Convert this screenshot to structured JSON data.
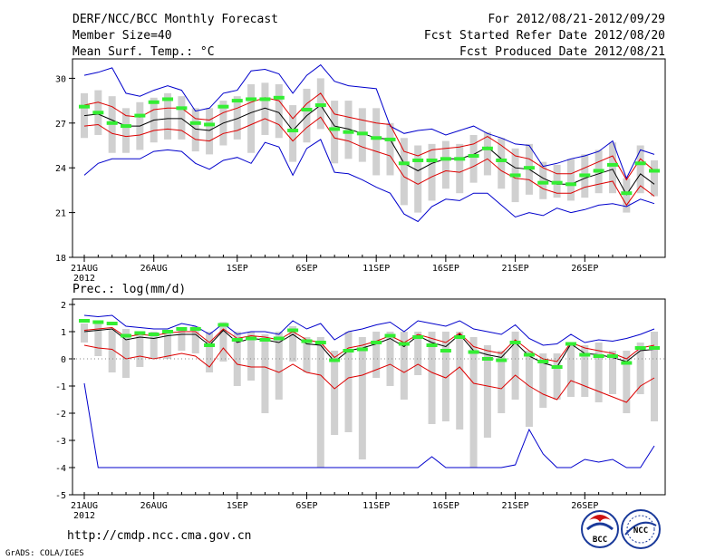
{
  "header": {
    "title": "DERF/NCC/BCC Monthly Forecast",
    "member_size": "Member Size=40",
    "variable": "Mean Surf. Temp.: °C",
    "period": "For 2012/08/21-2012/09/29",
    "start_date": "Fcst Started Refer Date 2012/08/20",
    "produced_date": "Fcst Produced Date 2012/08/21"
  },
  "footer": {
    "url": "http://cmdp.ncc.cma.gov.cn",
    "grads": "GrADS: COLA/IGES",
    "logo1_text": "BCC",
    "logo2_text": "NCC"
  },
  "colors": {
    "box": "#d0d0d0",
    "ensemble_mean": "#000000",
    "spread": "#dd0000",
    "extremes": "#0000cc",
    "observed": "#33ee33",
    "grid": "#000000"
  },
  "chart_data": [
    {
      "type": "box",
      "title": "Mean Surf. Temp.: °C",
      "xlabel": "",
      "ylabel": "°C",
      "ylim": [
        18,
        31.3
      ],
      "yticks": [
        18,
        21,
        24,
        27,
        30
      ],
      "x_start_day": 0,
      "x_end_day": 40,
      "xticks": [
        {
          "day": 0,
          "label": "21AUG",
          "year": "2012"
        },
        {
          "day": 5,
          "label": "26AUG"
        },
        {
          "day": 11,
          "label": "1SEP"
        },
        {
          "day": 16,
          "label": "6SEP"
        },
        {
          "day": 21,
          "label": "11SEP"
        },
        {
          "day": 26,
          "label": "16SEP"
        },
        {
          "day": 31,
          "label": "21SEP"
        },
        {
          "day": 36,
          "label": "26SEP"
        }
      ],
      "mean": [
        27.5,
        27.6,
        27.2,
        26.8,
        26.8,
        27.2,
        27.3,
        27.3,
        26.6,
        26.5,
        27.0,
        27.3,
        27.7,
        28.0,
        27.7,
        26.5,
        27.5,
        28.2,
        26.8,
        26.6,
        26.3,
        26.0,
        25.9,
        24.3,
        23.8,
        24.3,
        24.6,
        24.6,
        24.9,
        25.4,
        24.6,
        24.0,
        23.9,
        23.3,
        22.9,
        22.9,
        23.3,
        23.6,
        23.9,
        22.2,
        23.6,
        22.9
      ],
      "upper": [
        28.2,
        28.4,
        28.1,
        27.5,
        27.4,
        27.9,
        28.0,
        28.0,
        27.3,
        27.2,
        27.7,
        28.0,
        28.4,
        28.7,
        28.5,
        27.3,
        28.3,
        29.0,
        27.6,
        27.4,
        27.2,
        27.0,
        26.9,
        25.1,
        24.8,
        25.2,
        25.3,
        25.4,
        25.6,
        26.1,
        25.5,
        24.8,
        24.6,
        24.0,
        23.6,
        23.6,
        24.0,
        24.4,
        24.8,
        23.2,
        24.6,
        23.8
      ],
      "lower": [
        26.8,
        26.9,
        26.3,
        26.1,
        26.2,
        26.5,
        26.6,
        26.5,
        25.9,
        25.8,
        26.3,
        26.5,
        26.9,
        27.3,
        26.9,
        25.8,
        26.7,
        27.4,
        26.0,
        25.8,
        25.4,
        25.1,
        24.8,
        23.4,
        22.9,
        23.4,
        23.8,
        23.7,
        24.1,
        24.6,
        23.8,
        23.3,
        23.2,
        22.6,
        22.3,
        22.3,
        22.7,
        22.9,
        23.1,
        21.5,
        22.8,
        22.1
      ],
      "max": [
        30.2,
        30.4,
        30.7,
        29.0,
        28.8,
        29.2,
        29.5,
        29.2,
        27.8,
        28.0,
        29.0,
        29.2,
        30.5,
        30.6,
        30.3,
        29.0,
        30.2,
        30.9,
        29.8,
        29.5,
        29.4,
        29.3,
        26.8,
        26.3,
        26.5,
        26.6,
        26.2,
        26.5,
        26.8,
        26.3,
        26.0,
        25.6,
        25.5,
        24.1,
        24.3,
        24.6,
        24.8,
        25.1,
        25.8,
        23.3,
        25.2,
        24.9
      ],
      "min": [
        23.5,
        24.3,
        24.6,
        24.6,
        24.6,
        25.1,
        25.2,
        25.1,
        24.3,
        23.9,
        24.5,
        24.7,
        24.3,
        25.7,
        25.4,
        23.5,
        25.3,
        25.9,
        23.7,
        23.6,
        23.2,
        22.7,
        22.3,
        20.9,
        20.4,
        21.4,
        21.9,
        21.8,
        22.3,
        22.3,
        21.5,
        20.7,
        21.0,
        20.8,
        21.3,
        21.0,
        21.2,
        21.5,
        21.6,
        21.4,
        21.9,
        21.6
      ],
      "box_high": [
        29.0,
        29.2,
        28.8,
        28.0,
        28.4,
        28.7,
        29.0,
        28.8,
        28.0,
        28.0,
        28.5,
        28.8,
        29.6,
        29.7,
        29.6,
        28.2,
        29.3,
        30.0,
        28.5,
        28.5,
        28.0,
        28.0,
        27.0,
        26.0,
        25.5,
        25.6,
        25.8,
        25.6,
        26.2,
        26.4,
        26.0,
        25.3,
        25.6,
        24.4,
        24.2,
        24.6,
        24.9,
        25.2,
        25.7,
        23.3,
        25.5,
        24.5
      ],
      "box_low": [
        26.0,
        26.2,
        25.0,
        25.0,
        25.2,
        25.7,
        25.9,
        25.9,
        25.1,
        24.9,
        25.5,
        25.9,
        25.0,
        26.2,
        26.0,
        24.4,
        25.7,
        26.6,
        24.3,
        24.6,
        24.4,
        23.5,
        23.5,
        21.5,
        21.0,
        21.8,
        22.6,
        22.3,
        23.0,
        23.5,
        22.6,
        21.7,
        22.2,
        21.9,
        22.0,
        21.8,
        22.0,
        22.3,
        22.3,
        21.0,
        22.3,
        22.1
      ],
      "observed": [
        28.1,
        27.7,
        27.0,
        26.8,
        27.5,
        28.4,
        28.6,
        28.0,
        27.0,
        26.9,
        28.1,
        28.5,
        28.6,
        28.6,
        28.7,
        26.5,
        27.9,
        28.2,
        26.6,
        26.4,
        26.3,
        26.0,
        25.9,
        24.3,
        24.5,
        24.5,
        24.6,
        24.6,
        24.8,
        25.3,
        24.5,
        23.5,
        24.0,
        23.0,
        23.0,
        22.9,
        23.5,
        23.8,
        24.2,
        22.3,
        24.3,
        23.8
      ]
    },
    {
      "type": "box",
      "title": "Prec.: log(mm/d)",
      "xlabel": "",
      "ylabel": "log(mm/d)",
      "ylim": [
        -5,
        2.2
      ],
      "yticks": [
        -5,
        -4,
        -3,
        -2,
        -1,
        0,
        1,
        2
      ],
      "x_start_day": 0,
      "x_end_day": 40,
      "xticks": [
        {
          "day": 0,
          "label": "21AUG",
          "year": "2012"
        },
        {
          "day": 5,
          "label": "26AUG"
        },
        {
          "day": 11,
          "label": "1SEP"
        },
        {
          "day": 16,
          "label": "6SEP"
        },
        {
          "day": 21,
          "label": "11SEP"
        },
        {
          "day": 26,
          "label": "16SEP"
        },
        {
          "day": 31,
          "label": "21SEP"
        },
        {
          "day": 36,
          "label": "26SEP"
        }
      ],
      "mean": [
        1.0,
        1.05,
        1.1,
        0.7,
        0.8,
        0.75,
        0.85,
        0.9,
        0.9,
        0.5,
        1.05,
        0.6,
        0.75,
        0.7,
        0.6,
        0.9,
        0.55,
        0.5,
        -0.1,
        0.3,
        0.4,
        0.55,
        0.75,
        0.45,
        0.85,
        0.6,
        0.45,
        0.9,
        0.3,
        0.15,
        0.05,
        0.6,
        0.1,
        -0.15,
        -0.3,
        0.55,
        0.2,
        0.15,
        0.05,
        -0.1,
        0.3,
        0.35
      ],
      "upper": [
        1.05,
        1.1,
        1.15,
        0.8,
        0.9,
        0.85,
        0.95,
        1.0,
        1.0,
        0.6,
        1.1,
        0.75,
        0.85,
        0.8,
        0.7,
        1.0,
        0.7,
        0.6,
        0.05,
        0.4,
        0.5,
        0.65,
        0.85,
        0.6,
        0.9,
        0.75,
        0.6,
        0.95,
        0.45,
        0.3,
        0.2,
        0.7,
        0.3,
        0.0,
        -0.1,
        0.6,
        0.4,
        0.3,
        0.2,
        0.0,
        0.4,
        0.5
      ],
      "lower": [
        0.5,
        0.4,
        0.35,
        0.0,
        0.1,
        0.0,
        0.1,
        0.2,
        0.1,
        -0.3,
        0.4,
        -0.2,
        -0.3,
        -0.3,
        -0.5,
        -0.2,
        -0.5,
        -0.6,
        -1.1,
        -0.7,
        -0.6,
        -0.4,
        -0.2,
        -0.5,
        -0.2,
        -0.5,
        -0.7,
        -0.3,
        -0.9,
        -1.0,
        -1.1,
        -0.6,
        -1.0,
        -1.3,
        -1.5,
        -0.8,
        -1.0,
        -1.2,
        -1.4,
        -1.6,
        -1.0,
        -0.7
      ],
      "max": [
        1.6,
        1.55,
        1.6,
        1.2,
        1.15,
        1.1,
        1.1,
        1.3,
        1.2,
        0.9,
        1.3,
        0.9,
        1.0,
        1.0,
        0.9,
        1.4,
        1.1,
        1.3,
        0.7,
        1.0,
        1.1,
        1.25,
        1.35,
        1.0,
        1.4,
        1.3,
        1.2,
        1.4,
        1.1,
        1.0,
        0.9,
        1.25,
        0.75,
        0.5,
        0.55,
        0.9,
        0.6,
        0.7,
        0.65,
        0.75,
        0.9,
        1.1
      ],
      "min": [
        -0.9,
        -4.0,
        -4.0,
        -4.0,
        -4.0,
        -4.0,
        -4.0,
        -4.0,
        -4.0,
        -4.0,
        -4.0,
        -4.0,
        -4.0,
        -4.0,
        -4.0,
        -4.0,
        -4.0,
        -4.0,
        -4.0,
        -4.0,
        -4.0,
        -4.0,
        -4.0,
        -4.0,
        -4.0,
        -3.6,
        -4.0,
        -4.0,
        -4.0,
        -4.0,
        -4.0,
        -3.9,
        -2.6,
        -3.5,
        -4.0,
        -4.0,
        -3.7,
        -3.8,
        -3.7,
        -4.0,
        -4.0,
        -3.2
      ],
      "box_high": [
        1.3,
        1.4,
        1.1,
        1.1,
        1.0,
        1.0,
        1.0,
        1.1,
        1.2,
        1.0,
        1.35,
        1.0,
        1.0,
        0.9,
        1.0,
        1.2,
        0.8,
        0.8,
        0.3,
        1.0,
        0.8,
        1.0,
        1.0,
        1.0,
        1.0,
        1.0,
        1.0,
        1.0,
        0.8,
        0.5,
        0.3,
        1.0,
        0.3,
        0.2,
        0.2,
        0.6,
        0.5,
        0.6,
        0.3,
        0.3,
        0.6,
        1.0
      ],
      "box_low": [
        0.6,
        0.1,
        -0.5,
        -0.7,
        -0.3,
        0.0,
        0.0,
        0.3,
        0.2,
        -0.5,
        -0.1,
        -1.0,
        -0.8,
        -2.0,
        -1.5,
        -0.1,
        -0.5,
        -4.0,
        -2.8,
        -2.7,
        -3.7,
        -0.7,
        -1.0,
        -1.5,
        -0.6,
        -2.4,
        -2.3,
        -2.6,
        -4.0,
        -2.9,
        -2.0,
        -1.5,
        -2.5,
        -1.8,
        -1.5,
        -1.4,
        -1.4,
        -1.6,
        -1.3,
        -2.0,
        -1.3,
        -2.3
      ],
      "observed": [
        1.4,
        1.35,
        1.3,
        0.85,
        0.95,
        0.9,
        1.0,
        1.1,
        1.1,
        0.5,
        1.25,
        0.7,
        0.75,
        0.7,
        0.75,
        1.05,
        0.65,
        0.6,
        -0.05,
        0.3,
        0.35,
        0.6,
        0.85,
        0.55,
        0.8,
        0.5,
        0.3,
        0.8,
        0.25,
        0.0,
        -0.05,
        0.6,
        0.15,
        -0.1,
        -0.3,
        0.55,
        0.15,
        0.1,
        0.1,
        -0.15,
        0.4,
        0.4
      ]
    }
  ]
}
